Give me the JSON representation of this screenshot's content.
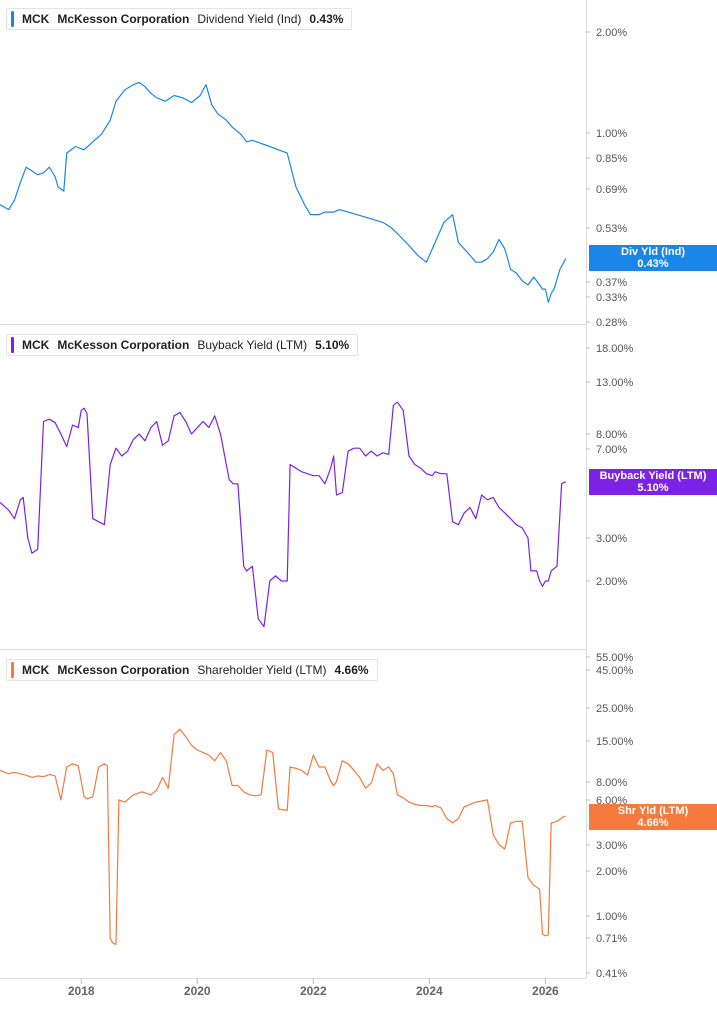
{
  "x_axis": {
    "tick_labels": [
      "2018",
      "2020",
      "2022",
      "2024",
      "2026"
    ]
  },
  "panels": [
    {
      "ticker": "MCK",
      "company": "McKesson Corporation",
      "metric": "Dividend Yield (Ind)",
      "value": "0.43%",
      "tag_line1": "Div Yld (Ind)",
      "tag_line2": "0.43%",
      "color": "#1a86e8"
    },
    {
      "ticker": "MCK",
      "company": "McKesson Corporation",
      "metric": "Buyback Yield (LTM)",
      "value": "5.10%",
      "tag_line1": "Buyback Yield (LTM)",
      "tag_line2": "5.10%",
      "color": "#7b22e6"
    },
    {
      "ticker": "MCK",
      "company": "McKesson Corporation",
      "metric": "Shareholder Yield (LTM)",
      "value": "4.66%",
      "tag_line1": "Shr Yld (LTM)",
      "tag_line2": "4.66%",
      "color": "#f47a3d"
    }
  ],
  "chart_data": [
    {
      "type": "line",
      "y_scale": "log",
      "ylim": [
        0.27,
        2.4
      ],
      "xlim": [
        2016.6,
        2026.7
      ],
      "y_ticks": [
        {
          "v": 2.0,
          "label": "2.00%"
        },
        {
          "v": 1.0,
          "label": "1.00%"
        },
        {
          "v": 0.85,
          "label": "0.85%"
        },
        {
          "v": 0.69,
          "label": "0.69%"
        },
        {
          "v": 0.53,
          "label": "0.53%"
        },
        {
          "v": 0.37,
          "label": "0.37%"
        },
        {
          "v": 0.33,
          "label": "0.33%"
        },
        {
          "v": 0.28,
          "label": "0.28%"
        }
      ],
      "series": [
        {
          "x": [
            2016.6,
            2016.75,
            2016.85,
            2016.95,
            2017.05,
            2017.15,
            2017.25,
            2017.35,
            2017.45,
            2017.55,
            2017.6,
            2017.7,
            2017.75,
            2017.9,
            2018.05,
            2018.2,
            2018.35,
            2018.5,
            2018.6,
            2018.75,
            2018.9,
            2019.0,
            2019.1,
            2019.2,
            2019.3,
            2019.45,
            2019.6,
            2019.75,
            2019.9,
            2020.05,
            2020.15,
            2020.25,
            2020.35,
            2020.5,
            2020.6,
            2020.75,
            2020.85,
            2020.95,
            2021.1,
            2021.25,
            2021.4,
            2021.55,
            2021.7,
            2021.85,
            2021.95,
            2022.1,
            2022.2,
            2022.35,
            2022.45,
            2022.6,
            2022.75,
            2022.9,
            2023.05,
            2023.2,
            2023.35,
            2023.5,
            2023.65,
            2023.8,
            2023.95,
            2024.1,
            2024.25,
            2024.4,
            2024.5,
            2024.6,
            2024.7,
            2024.8,
            2024.9,
            2025.0,
            2025.1,
            2025.2,
            2025.3,
            2025.4,
            2025.5,
            2025.6,
            2025.7,
            2025.8,
            2025.9,
            2025.95,
            2026.0,
            2026.05,
            2026.1,
            2026.15,
            2026.25,
            2026.35
          ],
          "y": [
            0.62,
            0.6,
            0.64,
            0.72,
            0.8,
            0.78,
            0.76,
            0.77,
            0.8,
            0.75,
            0.7,
            0.68,
            0.88,
            0.92,
            0.9,
            0.95,
            1.0,
            1.1,
            1.25,
            1.35,
            1.4,
            1.42,
            1.38,
            1.32,
            1.28,
            1.25,
            1.3,
            1.28,
            1.24,
            1.3,
            1.4,
            1.22,
            1.15,
            1.1,
            1.05,
            1.0,
            0.95,
            0.96,
            0.94,
            0.92,
            0.9,
            0.88,
            0.7,
            0.62,
            0.58,
            0.58,
            0.59,
            0.59,
            0.6,
            0.59,
            0.58,
            0.57,
            0.56,
            0.55,
            0.53,
            0.5,
            0.47,
            0.44,
            0.42,
            0.48,
            0.55,
            0.58,
            0.48,
            0.46,
            0.44,
            0.42,
            0.42,
            0.43,
            0.45,
            0.49,
            0.46,
            0.4,
            0.39,
            0.37,
            0.36,
            0.38,
            0.36,
            0.35,
            0.35,
            0.32,
            0.34,
            0.35,
            0.4,
            0.43
          ]
        }
      ]
    },
    {
      "type": "line",
      "y_scale": "log",
      "ylim": [
        1.0,
        21.0
      ],
      "xlim": [
        2016.6,
        2026.7
      ],
      "y_ticks": [
        {
          "v": 18.0,
          "label": "18.00%"
        },
        {
          "v": 13.0,
          "label": "13.00%"
        },
        {
          "v": 8.0,
          "label": "8.00%"
        },
        {
          "v": 7.0,
          "label": "7.00%"
        },
        {
          "v": 3.0,
          "label": "3.00%"
        },
        {
          "v": 2.0,
          "label": "2.00%"
        }
      ],
      "series": [
        {
          "x": [
            2016.6,
            2016.75,
            2016.85,
            2016.95,
            2017.0,
            2017.08,
            2017.15,
            2017.25,
            2017.35,
            2017.45,
            2017.55,
            2017.65,
            2017.75,
            2017.85,
            2017.95,
            2018.0,
            2018.05,
            2018.1,
            2018.2,
            2018.3,
            2018.4,
            2018.5,
            2018.6,
            2018.7,
            2018.8,
            2018.9,
            2019.0,
            2019.1,
            2019.2,
            2019.3,
            2019.4,
            2019.5,
            2019.6,
            2019.7,
            2019.8,
            2019.9,
            2020.0,
            2020.1,
            2020.2,
            2020.3,
            2020.4,
            2020.55,
            2020.62,
            2020.7,
            2020.8,
            2020.85,
            2020.95,
            2021.05,
            2021.15,
            2021.25,
            2021.35,
            2021.45,
            2021.55,
            2021.6,
            2021.7,
            2021.8,
            2021.9,
            2022.0,
            2022.1,
            2022.2,
            2022.3,
            2022.35,
            2022.4,
            2022.5,
            2022.6,
            2022.7,
            2022.8,
            2022.9,
            2023.0,
            2023.1,
            2023.2,
            2023.3,
            2023.38,
            2023.45,
            2023.55,
            2023.65,
            2023.75,
            2023.85,
            2023.95,
            2024.05,
            2024.1,
            2024.2,
            2024.3,
            2024.4,
            2024.5,
            2024.6,
            2024.7,
            2024.8,
            2024.9,
            2025.0,
            2025.1,
            2025.2,
            2025.3,
            2025.4,
            2025.5,
            2025.6,
            2025.7,
            2025.75,
            2025.85,
            2025.9,
            2025.95,
            2026.0,
            2026.05,
            2026.1,
            2026.2,
            2026.28,
            2026.35
          ],
          "y": [
            4.2,
            3.9,
            3.6,
            4.3,
            4.4,
            3.0,
            2.6,
            2.7,
            9.0,
            9.2,
            8.9,
            8.0,
            7.1,
            8.7,
            8.5,
            10.0,
            10.2,
            9.7,
            3.6,
            3.5,
            3.4,
            6.0,
            7.0,
            6.5,
            6.8,
            7.6,
            8.0,
            7.5,
            8.5,
            9.0,
            7.2,
            7.5,
            9.5,
            9.8,
            9.0,
            8.0,
            8.5,
            9.0,
            8.5,
            9.5,
            8.0,
            5.2,
            5.0,
            5.0,
            2.3,
            2.2,
            2.3,
            1.4,
            1.3,
            2.0,
            2.1,
            2.0,
            2.0,
            6.0,
            5.8,
            5.6,
            5.5,
            5.4,
            5.4,
            5.0,
            5.8,
            6.5,
            4.5,
            4.6,
            6.8,
            7.0,
            7.0,
            6.5,
            6.8,
            6.5,
            6.7,
            6.6,
            10.5,
            10.8,
            10.0,
            6.5,
            6.0,
            5.8,
            5.5,
            5.4,
            5.6,
            5.5,
            5.5,
            3.5,
            3.4,
            3.8,
            4.0,
            3.6,
            4.5,
            4.3,
            4.4,
            4.0,
            3.8,
            3.6,
            3.4,
            3.3,
            3.0,
            2.2,
            2.2,
            2.0,
            1.9,
            2.0,
            2.0,
            2.2,
            2.3,
            5.0,
            5.1
          ]
        }
      ]
    },
    {
      "type": "line",
      "y_scale": "log",
      "ylim": [
        0.4,
        62.0
      ],
      "xlim": [
        2016.6,
        2026.7
      ],
      "y_ticks": [
        {
          "v": 55.0,
          "label": "55.00%"
        },
        {
          "v": 45.0,
          "label": "45.00%"
        },
        {
          "v": 25.0,
          "label": "25.00%"
        },
        {
          "v": 15.0,
          "label": "15.00%"
        },
        {
          "v": 8.0,
          "label": "8.00%"
        },
        {
          "v": 6.0,
          "label": "6.00%"
        },
        {
          "v": 3.0,
          "label": "3.00%"
        },
        {
          "v": 2.0,
          "label": "2.00%"
        },
        {
          "v": 1.0,
          "label": "1.00%"
        },
        {
          "v": 0.71,
          "label": "0.71%"
        },
        {
          "v": 0.41,
          "label": "0.41%"
        }
      ],
      "series": [
        {
          "x": [
            2016.6,
            2016.75,
            2016.85,
            2016.95,
            2017.05,
            2017.15,
            2017.25,
            2017.35,
            2017.45,
            2017.55,
            2017.65,
            2017.75,
            2017.85,
            2017.95,
            2018.05,
            2018.1,
            2018.2,
            2018.3,
            2018.4,
            2018.45,
            2018.5,
            2018.55,
            2018.6,
            2018.65,
            2018.75,
            2018.9,
            2019.05,
            2019.2,
            2019.3,
            2019.4,
            2019.5,
            2019.6,
            2019.7,
            2019.8,
            2019.9,
            2020.0,
            2020.1,
            2020.2,
            2020.3,
            2020.4,
            2020.5,
            2020.6,
            2020.7,
            2020.8,
            2020.9,
            2021.0,
            2021.1,
            2021.2,
            2021.3,
            2021.4,
            2021.55,
            2021.6,
            2021.7,
            2021.8,
            2021.9,
            2022.0,
            2022.1,
            2022.2,
            2022.3,
            2022.35,
            2022.4,
            2022.5,
            2022.6,
            2022.7,
            2022.8,
            2022.9,
            2023.0,
            2023.1,
            2023.2,
            2023.3,
            2023.38,
            2023.45,
            2023.55,
            2023.65,
            2023.75,
            2023.85,
            2023.95,
            2024.05,
            2024.1,
            2024.2,
            2024.3,
            2024.4,
            2024.5,
            2024.6,
            2024.7,
            2024.8,
            2024.9,
            2025.0,
            2025.1,
            2025.2,
            2025.3,
            2025.4,
            2025.5,
            2025.6,
            2025.7,
            2025.8,
            2025.9,
            2025.95,
            2026.0,
            2026.05,
            2026.1,
            2026.2,
            2026.3,
            2026.35
          ],
          "y": [
            9.5,
            9.0,
            9.2,
            9.0,
            8.8,
            8.5,
            8.7,
            8.6,
            8.9,
            8.7,
            6.0,
            10.0,
            10.5,
            10.2,
            6.3,
            6.1,
            6.3,
            10.0,
            10.5,
            10.2,
            0.7,
            0.65,
            0.64,
            6.0,
            5.8,
            6.5,
            6.8,
            6.5,
            7.0,
            8.5,
            7.2,
            16.5,
            18.0,
            16.0,
            14.0,
            13.0,
            12.5,
            12.0,
            11.0,
            12.5,
            11.0,
            7.5,
            7.5,
            6.8,
            6.5,
            6.4,
            6.5,
            13.0,
            12.5,
            5.2,
            5.1,
            10.0,
            9.8,
            9.5,
            8.8,
            12.0,
            10.0,
            10.0,
            8.0,
            7.5,
            8.0,
            11.0,
            10.5,
            9.5,
            8.5,
            7.2,
            7.8,
            10.5,
            9.5,
            10.0,
            9.0,
            6.5,
            6.2,
            5.8,
            5.6,
            5.5,
            5.5,
            5.4,
            5.5,
            5.3,
            4.5,
            4.2,
            4.5,
            5.4,
            5.6,
            5.8,
            5.9,
            6.0,
            3.5,
            3.0,
            2.8,
            4.2,
            4.3,
            4.3,
            1.8,
            1.6,
            1.5,
            0.75,
            0.73,
            0.74,
            4.2,
            4.3,
            4.6,
            4.66
          ]
        }
      ]
    }
  ]
}
